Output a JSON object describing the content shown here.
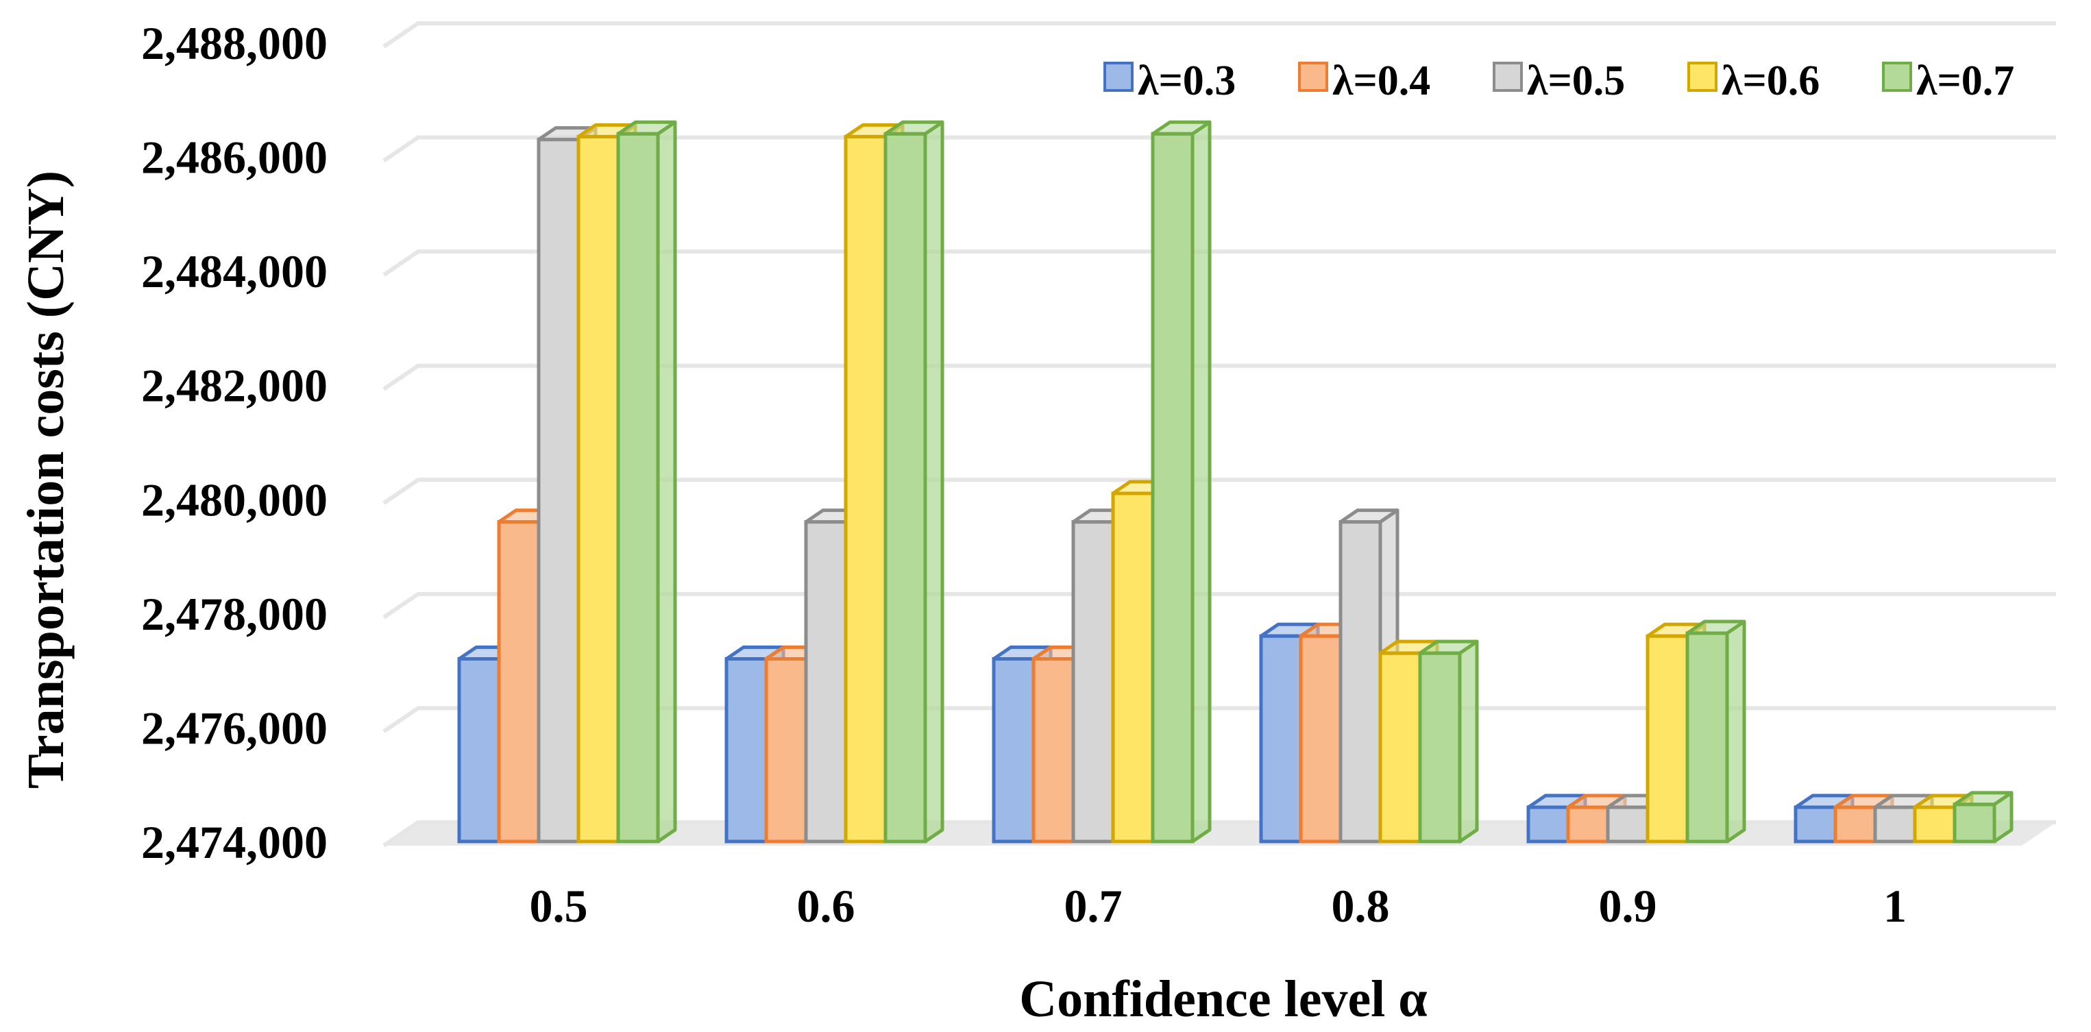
{
  "chart_data": {
    "type": "bar",
    "style": "3d-clustered-column",
    "title": "",
    "xlabel": "Confidence level α",
    "ylabel": "Transportation costs (CNY)",
    "categories": [
      "0.5",
      "0.6",
      "0.7",
      "0.8",
      "0.9",
      "1"
    ],
    "ylim": [
      2474000,
      2488000
    ],
    "yticks": [
      2474000,
      2476000,
      2478000,
      2480000,
      2482000,
      2484000,
      2486000,
      2488000
    ],
    "ytick_labels": [
      "2,474,000",
      "2,476,000",
      "2,478,000",
      "2,480,000",
      "2,482,000",
      "2,484,000",
      "2,486,000",
      "2,488,000"
    ],
    "grid": true,
    "legend_position": "top-right",
    "series": [
      {
        "name": "λ=0.3",
        "color": "#4472C4",
        "fill": "#9DB9E8",
        "values": [
          2477200,
          2477200,
          2477200,
          2477600,
          2474600,
          2474600
        ]
      },
      {
        "name": "λ=0.4",
        "color": "#ED7D31",
        "fill": "#F9B98A",
        "values": [
          2479600,
          2477200,
          2477200,
          2477600,
          2474600,
          2474600
        ]
      },
      {
        "name": "λ=0.5",
        "color": "#8C8C8C",
        "fill": "#D6D6D6",
        "values": [
          2486300,
          2479600,
          2479600,
          2479600,
          2474600,
          2474600
        ]
      },
      {
        "name": "λ=0.6",
        "color": "#D4A700",
        "fill": "#FFE566",
        "values": [
          2486350,
          2486350,
          2480100,
          2477300,
          2477600,
          2474600
        ]
      },
      {
        "name": "λ=0.7",
        "color": "#70AD47",
        "fill": "#B3DA99",
        "values": [
          2486400,
          2486400,
          2486400,
          2477300,
          2477650,
          2474650
        ]
      }
    ]
  }
}
